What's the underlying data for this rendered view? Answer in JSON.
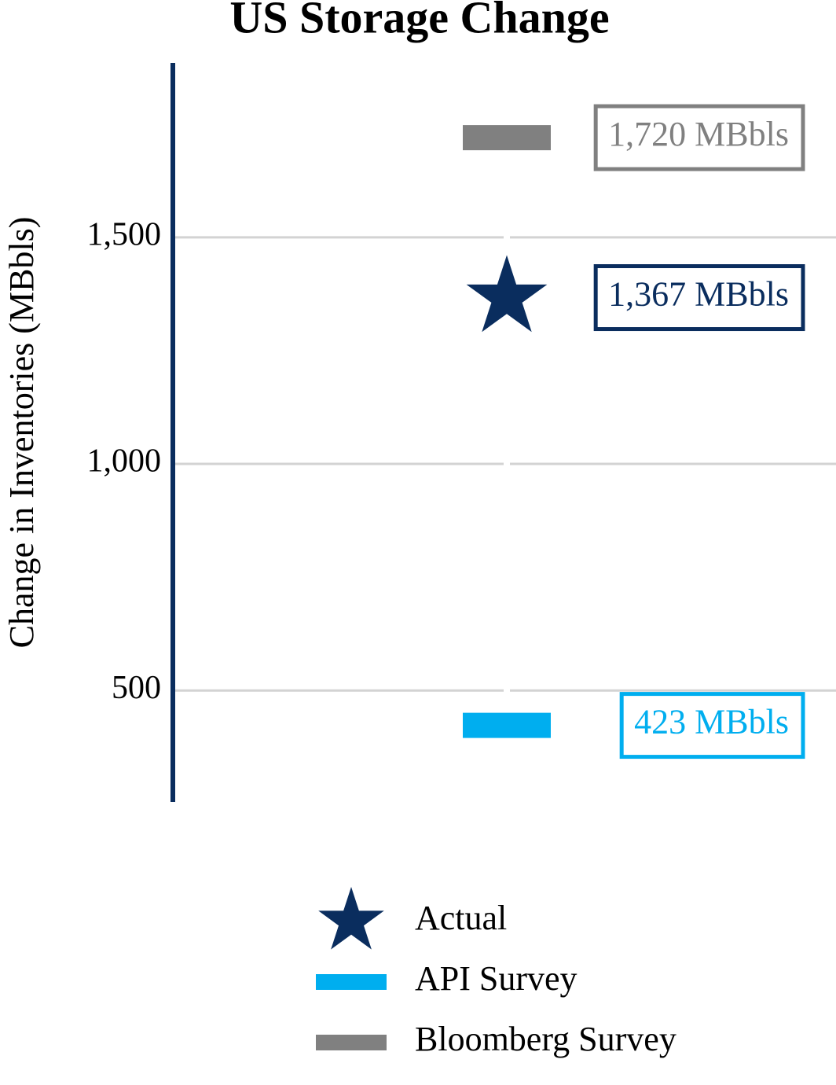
{
  "chart_data": {
    "type": "dot",
    "title": "US Storage Change",
    "ylabel": "Change in Inventories (MBbls)",
    "ylim": [
      254,
      1885
    ],
    "yticks": [
      500,
      {
        "value": 1000,
        "label": "1,000"
      },
      {
        "value": 1500,
        "label": "1,500"
      }
    ],
    "grid": true,
    "legend": "bottom",
    "series": [
      {
        "name": "Actual",
        "color": "#0a2d5e",
        "marker": "star",
        "values": [
          1367
        ],
        "value_labels": [
          "1,367 MBbls"
        ]
      },
      {
        "name": "API Survey",
        "color": "#00aeef",
        "marker": "bar",
        "values": [
          423
        ],
        "value_labels": [
          "423 MBbls"
        ]
      },
      {
        "name": "Bloomberg Survey",
        "color": "#808080",
        "marker": "bar",
        "values": [
          1720
        ],
        "value_labels": [
          "1,720 MBbls"
        ]
      }
    ]
  }
}
